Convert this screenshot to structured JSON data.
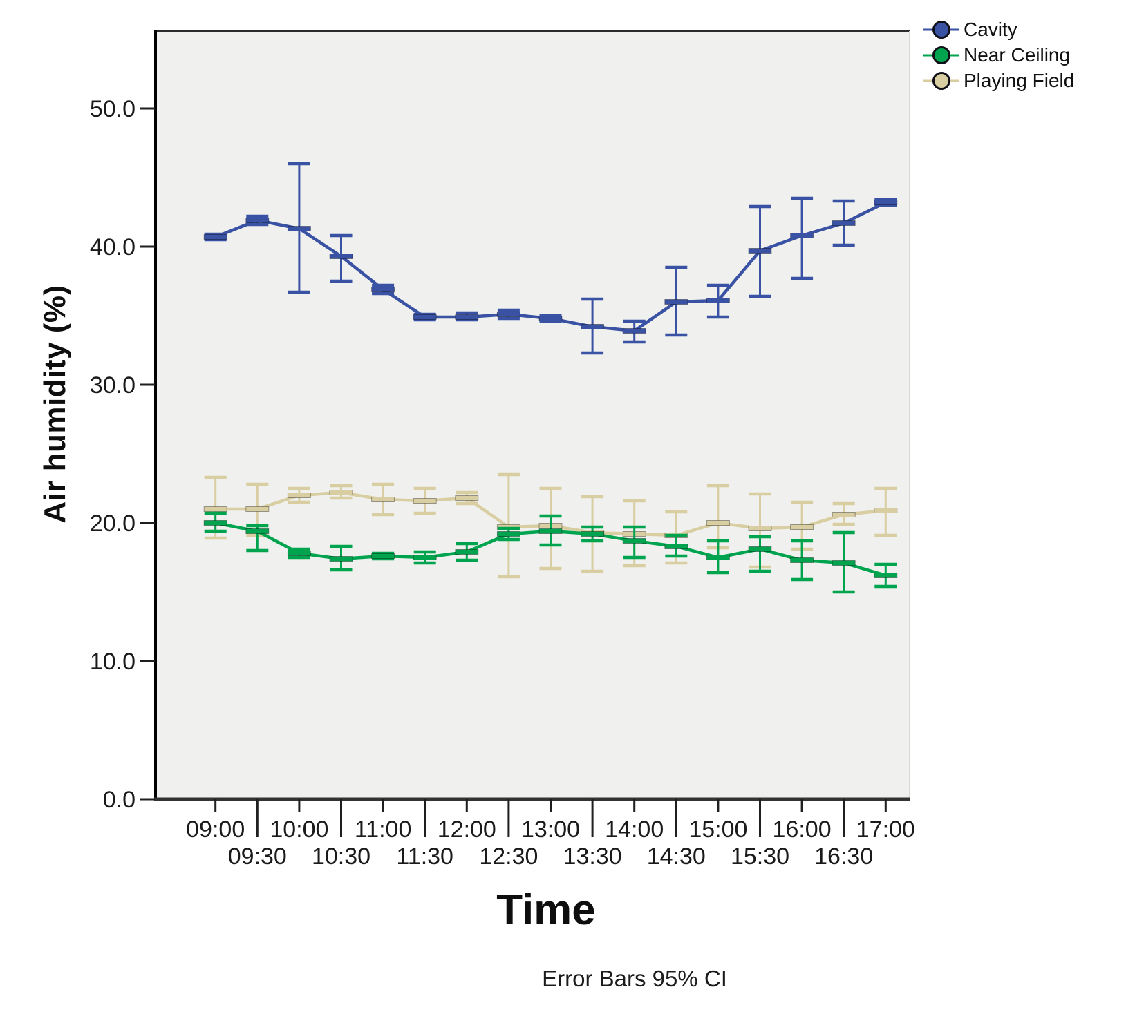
{
  "figure": {
    "background": "#ffffff",
    "plot_background": "#f0f0ee",
    "border_dark": "#2b2b2b",
    "border_light": "#d6d6d6",
    "tick_color": "#1f1f1f",
    "tick_label_color": "#1a1a1a",
    "caption": "Error Bars 95% CI"
  },
  "axes": {
    "x_title": "Time",
    "y_title": "Air humidity (%)",
    "y_tick_labels": [
      "0.0",
      "10.0",
      "20.0",
      "30.0",
      "40.0",
      "50.0"
    ],
    "y_tick_values": [
      0,
      10,
      20,
      30,
      40,
      50
    ],
    "x_categories": [
      "09:00",
      "09:30",
      "10:00",
      "10:30",
      "11:00",
      "11:30",
      "12:00",
      "12:30",
      "13:00",
      "13:30",
      "14:00",
      "14:30",
      "15:00",
      "15:30",
      "16:00",
      "16:30",
      "17:00"
    ]
  },
  "legend": {
    "marker_border": "#101018",
    "items": [
      {
        "label": "Cavity",
        "color": "#3a52a4"
      },
      {
        "label": "Near Ceiling",
        "color": "#00a44f"
      },
      {
        "label": "Playing Field",
        "color": "#d8cea2"
      }
    ]
  },
  "chart_data": {
    "type": "line",
    "title": "",
    "xlabel": "Time",
    "ylabel": "Air humidity (%)",
    "error_bars": "95% CI",
    "ylim": [
      0,
      55.6
    ],
    "grid": false,
    "legend_position": "top-right-outside",
    "categories": [
      "09:00",
      "09:30",
      "10:00",
      "10:30",
      "11:00",
      "11:30",
      "12:00",
      "12:30",
      "13:00",
      "13:30",
      "14:00",
      "14:30",
      "15:00",
      "15:30",
      "16:00",
      "16:30",
      "17:00"
    ],
    "series": [
      {
        "name": "Cavity",
        "color": "#3a52a4",
        "values": [
          40.7,
          41.9,
          41.3,
          39.3,
          36.9,
          34.9,
          34.9,
          35.1,
          34.8,
          34.2,
          33.9,
          36.0,
          36.1,
          39.7,
          40.8,
          41.7,
          43.2
        ],
        "ci_low": [
          40.5,
          41.6,
          36.7,
          37.5,
          36.6,
          34.7,
          34.7,
          34.8,
          34.6,
          32.3,
          33.1,
          33.6,
          34.9,
          36.4,
          37.7,
          40.1,
          43.0
        ],
        "ci_high": [
          40.9,
          42.2,
          46.0,
          40.8,
          37.2,
          35.1,
          35.2,
          35.4,
          35.0,
          36.2,
          34.6,
          38.5,
          37.2,
          42.9,
          43.5,
          43.3,
          43.4
        ]
      },
      {
        "name": "Near Ceiling",
        "color": "#00a44f",
        "values": [
          20.0,
          19.4,
          17.8,
          17.4,
          17.6,
          17.5,
          17.9,
          19.2,
          19.4,
          19.2,
          18.7,
          18.3,
          17.5,
          18.1,
          17.3,
          17.1,
          16.2
        ],
        "ci_low": [
          19.4,
          18.0,
          17.5,
          16.6,
          17.4,
          17.1,
          17.3,
          18.8,
          18.4,
          18.7,
          17.5,
          17.6,
          16.4,
          16.5,
          15.9,
          15.0,
          15.4
        ],
        "ci_high": [
          20.7,
          19.8,
          18.1,
          18.3,
          17.8,
          17.9,
          18.5,
          19.6,
          20.5,
          19.7,
          19.7,
          19.1,
          18.7,
          19.0,
          18.7,
          19.3,
          17.0
        ]
      },
      {
        "name": "Playing Field",
        "color": "#d8cea2",
        "values": [
          21.0,
          21.0,
          22.0,
          22.2,
          21.7,
          21.6,
          21.8,
          19.7,
          19.8,
          19.3,
          19.2,
          19.1,
          20.0,
          19.6,
          19.7,
          20.6,
          20.9
        ],
        "ci_low": [
          18.9,
          19.1,
          21.5,
          21.8,
          20.6,
          20.7,
          21.4,
          16.1,
          16.7,
          16.5,
          16.9,
          17.1,
          18.2,
          16.8,
          18.1,
          19.9,
          19.1
        ],
        "ci_high": [
          23.3,
          22.8,
          22.5,
          22.7,
          22.8,
          22.5,
          22.2,
          23.5,
          22.5,
          21.9,
          21.6,
          20.8,
          22.7,
          22.1,
          21.5,
          21.4,
          22.5
        ]
      }
    ]
  }
}
